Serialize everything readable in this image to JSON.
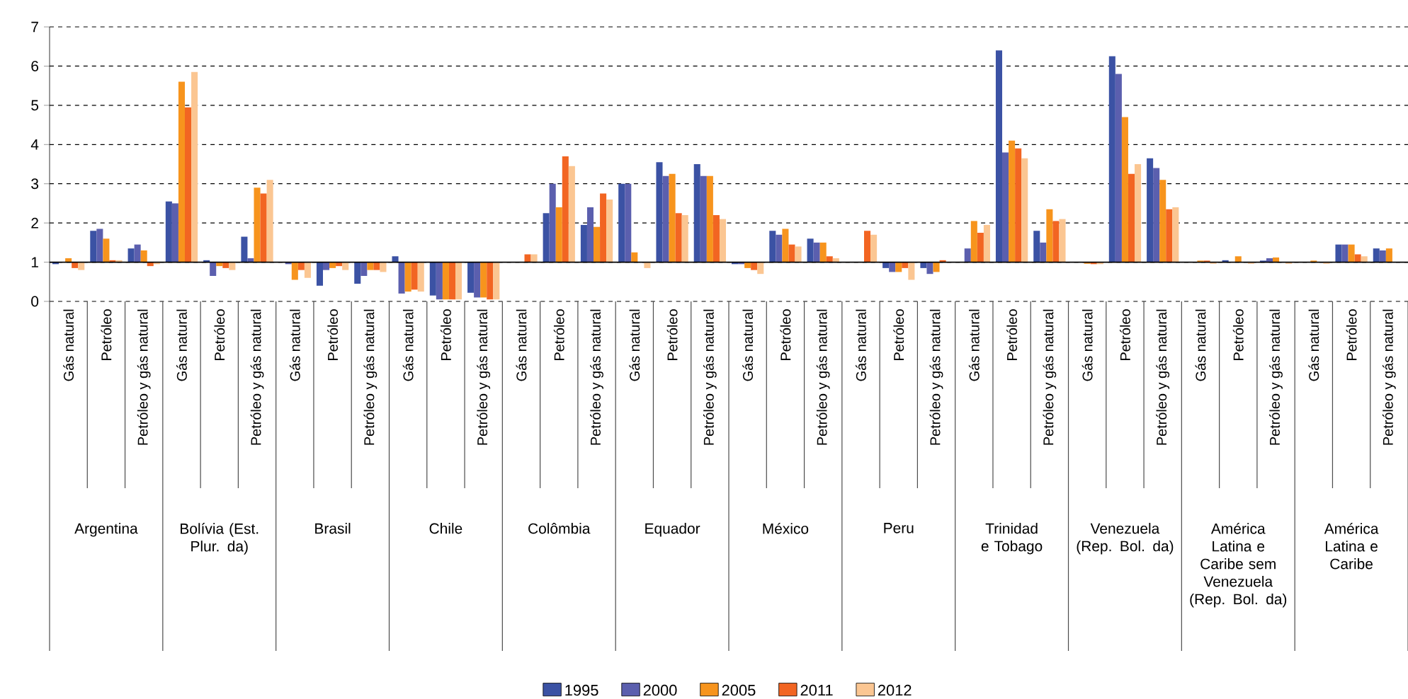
{
  "chart_data": {
    "type": "bar",
    "categories": [
      "Gás natural",
      "Petróleo",
      "Petróleo y gás natural",
      "Gás natural",
      "Petróleo",
      "Petróleo y gás natural",
      "Gás natural",
      "Petróleo",
      "Petróleo y gás natural",
      "Gás natural",
      "Petróleo",
      "Petróleo y gás natural",
      "Gás natural",
      "Petróleo",
      "Petróleo y gás natural",
      "Gás natural",
      "Petróleo",
      "Petróleo y gás natural",
      "Gás natural",
      "Petróleo",
      "Petróleo y gás natural",
      "Gás natural",
      "Petróleo",
      "Petróleo y gás natural",
      "Gás natural",
      "Petróleo",
      "Petróleo y gás natural",
      "Gás natural",
      "Petróleo",
      "Petróleo y gás natural",
      "Gás natural",
      "Petróleo",
      "Petróleo y gás natural",
      "Gás natural",
      "Petróleo",
      "Petróleo y gás natural"
    ],
    "annotations": [
      "Argentina",
      "Bolívia (Est. Plur. da)",
      "Brasil",
      "Chile",
      "Colômbia",
      "Equador",
      "México",
      "Peru",
      "Trinidad e Tobago",
      "Venezuela (Rep. Bol. da)",
      "América Latina e Caribe sem Venezuela (Rep. Bol. da)",
      "América Latina e Caribe"
    ],
    "series": [
      {
        "name": "1995",
        "color": "#3b52a4",
        "base": [
          1,
          1,
          1,
          1,
          1,
          1,
          null,
          1,
          1,
          1,
          1,
          1,
          null,
          1,
          1,
          1,
          1,
          1,
          1,
          1,
          1,
          null,
          1,
          1,
          null,
          1,
          1,
          null,
          1,
          1,
          null,
          1,
          1,
          null,
          1,
          1
        ],
        "values": [
          -0.05,
          0.8,
          0.35,
          1.55,
          0.05,
          0.65,
          null,
          -0.6,
          -0.55,
          0.15,
          -0.85,
          -0.78,
          null,
          1.25,
          0.95,
          2.0,
          2.55,
          2.5,
          -0.05,
          0.8,
          0.6,
          null,
          -0.15,
          -0.15,
          null,
          5.4,
          0.8,
          null,
          5.25,
          2.65,
          null,
          0.05,
          0.04,
          null,
          0.45,
          0.35
        ]
      },
      {
        "name": "2000",
        "color": "#5b5fae",
        "base": [
          null,
          1,
          1,
          1,
          1,
          1,
          1,
          1,
          1,
          1,
          1,
          1,
          null,
          1,
          1,
          1,
          1,
          1,
          1,
          1,
          1,
          null,
          1,
          1,
          1,
          1,
          1,
          null,
          1,
          1,
          null,
          null,
          1,
          null,
          1,
          1
        ],
        "values": [
          null,
          0.85,
          0.45,
          1.5,
          -0.35,
          0.1,
          -0.05,
          -0.2,
          -0.35,
          -0.8,
          -0.95,
          -0.9,
          null,
          2.0,
          1.4,
          2.0,
          2.2,
          2.2,
          -0.05,
          0.7,
          0.5,
          null,
          -0.25,
          -0.3,
          0.35,
          2.8,
          0.5,
          null,
          4.8,
          2.4,
          null,
          null,
          0.1,
          null,
          0.45,
          0.3
        ]
      },
      {
        "name": "2005",
        "color": "#f7941d",
        "base": [
          1,
          1,
          1,
          1,
          1,
          1,
          1,
          1,
          1,
          1,
          1,
          1,
          null,
          1,
          1,
          1,
          1,
          1,
          1,
          1,
          1,
          null,
          1,
          1,
          1,
          1,
          1,
          1,
          1,
          1,
          1,
          1,
          1,
          1,
          1,
          1
        ],
        "values": [
          0.1,
          0.6,
          0.3,
          4.6,
          -0.1,
          1.9,
          -0.45,
          -0.15,
          -0.2,
          -0.75,
          -0.95,
          -0.9,
          null,
          1.4,
          0.9,
          0.25,
          2.25,
          2.2,
          -0.15,
          0.85,
          0.5,
          null,
          -0.25,
          -0.25,
          1.05,
          3.1,
          1.35,
          -0.04,
          3.7,
          2.1,
          0.04,
          0.15,
          0.12,
          0.04,
          0.45,
          0.35
        ]
      },
      {
        "name": "2011",
        "color": "#f26522",
        "base": [
          1,
          1,
          1,
          1,
          1,
          1,
          1,
          1,
          1,
          1,
          1,
          1,
          1,
          1,
          1,
          null,
          1,
          1,
          1,
          1,
          1,
          1,
          1,
          1,
          1,
          1,
          1,
          1,
          1,
          1,
          1,
          null,
          null,
          null,
          1,
          null
        ],
        "values": [
          -0.15,
          0.05,
          -0.1,
          3.95,
          -0.15,
          1.75,
          -0.2,
          -0.1,
          -0.2,
          -0.7,
          -0.95,
          -0.95,
          0.2,
          2.7,
          1.75,
          null,
          1.25,
          1.2,
          -0.2,
          0.45,
          0.15,
          0.8,
          -0.15,
          0.05,
          0.75,
          2.9,
          1.05,
          -0.05,
          2.25,
          1.35,
          0.04,
          null,
          null,
          null,
          0.2,
          null
        ]
      },
      {
        "name": "2012",
        "color": "#fbc692",
        "base": [
          1,
          1,
          1,
          1,
          1,
          1,
          1,
          1,
          1,
          1,
          1,
          1,
          1,
          1,
          1,
          1,
          1,
          1,
          1,
          1,
          1,
          1,
          1,
          null,
          1,
          1,
          1,
          1,
          1,
          1,
          1,
          1,
          1,
          1,
          1,
          null
        ],
        "values": [
          -0.2,
          0.05,
          -0.05,
          4.85,
          -0.2,
          2.1,
          -0.4,
          -0.2,
          -0.25,
          -0.75,
          -0.95,
          -0.95,
          0.2,
          2.45,
          1.6,
          -0.15,
          1.2,
          1.1,
          -0.3,
          0.4,
          0.1,
          0.7,
          -0.45,
          null,
          0.95,
          2.65,
          1.1,
          -0.05,
          2.5,
          1.4,
          -0.04,
          -0.04,
          -0.04,
          -0.04,
          0.15,
          null
        ]
      }
    ],
    "ylim": [
      0,
      7
    ],
    "yticks": [
      0,
      1,
      2,
      3,
      4,
      5,
      6,
      7
    ],
    "grid": "y",
    "legend": "bottom",
    "ref_lines": [
      {
        "axis": "y",
        "value": 1,
        "color": "#000000"
      }
    ]
  }
}
